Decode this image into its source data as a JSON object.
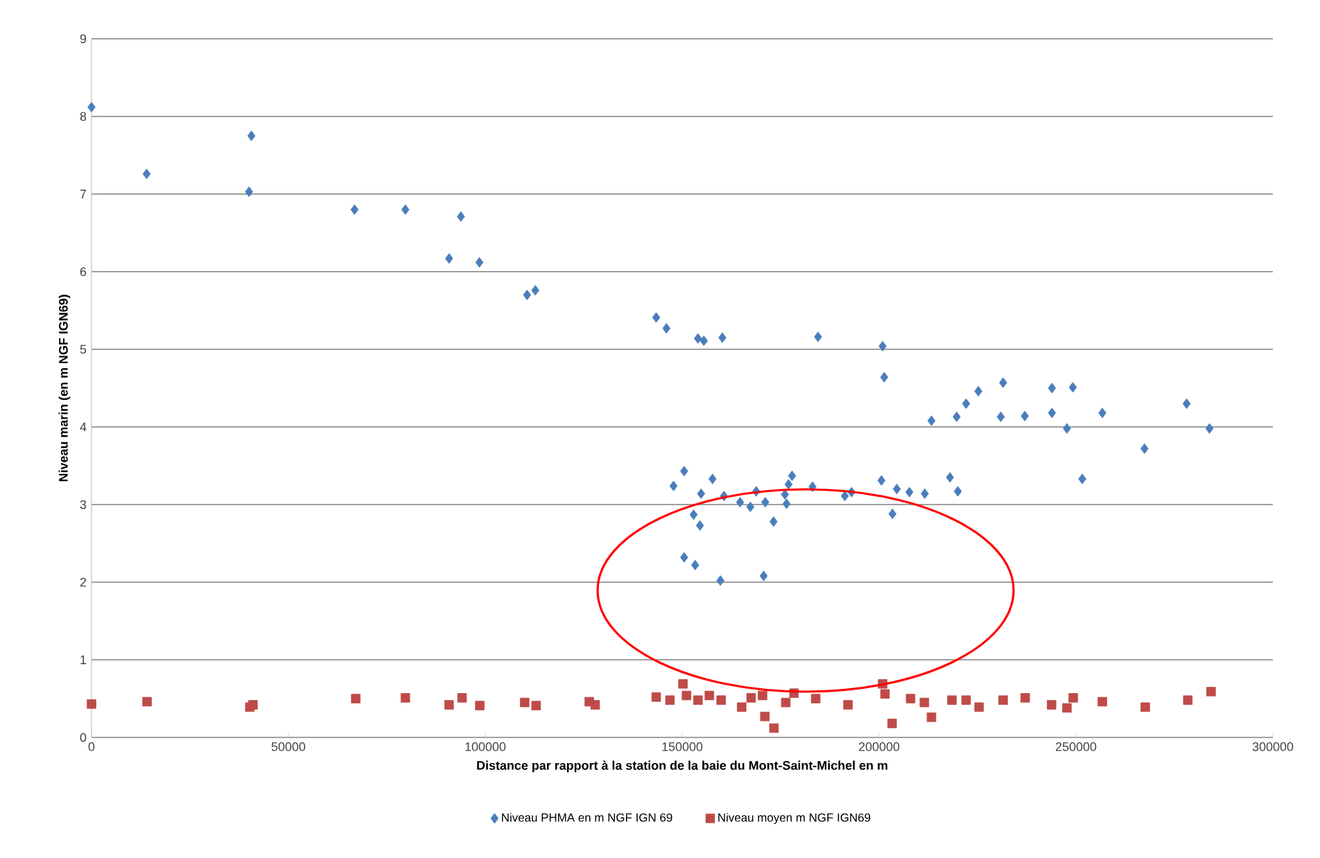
{
  "chart_data": {
    "type": "scatter",
    "xlabel": "Distance par rapport à la station de la baie du Mont-Saint-Michel en m",
    "ylabel": "Niveau marin (en m NGF IGN69)",
    "xlim": [
      0,
      300000
    ],
    "xticks": [
      0,
      50000,
      100000,
      150000,
      200000,
      250000,
      300000
    ],
    "ylim": [
      0,
      9
    ],
    "yticks": [
      0,
      1,
      2,
      3,
      4,
      5,
      6,
      7,
      8,
      9
    ],
    "grid": "y",
    "legend": "bottom",
    "series": [
      {
        "name": "Niveau PHMA en m NGF IGN 69",
        "color": "#4a7ebb",
        "marker": "diamond",
        "x": [
          0,
          14000,
          40600,
          40000,
          66800,
          79700,
          93800,
          90800,
          98500,
          110600,
          112700,
          143400,
          146000,
          154000,
          155500,
          160200,
          184500,
          200900,
          201300,
          213300,
          150500,
          147800,
          157700,
          154800,
          160600,
          164700,
          167300,
          168800,
          171100,
          177900,
          177000,
          176100,
          176500,
          183100,
          191300,
          193000,
          200600,
          204500,
          207700,
          211600,
          203400,
          152900,
          154500,
          173200,
          150500,
          153300,
          159700,
          170700,
          219700,
          222100,
          225200,
          231500,
          230900,
          237000,
          243900,
          243900,
          249200,
          247700,
          251600,
          256700,
          267400,
          278100,
          283900,
          218000,
          220000
        ],
        "values": [
          8.12,
          7.26,
          7.75,
          7.03,
          6.8,
          6.8,
          6.71,
          6.17,
          6.12,
          5.7,
          5.76,
          5.41,
          5.27,
          5.14,
          5.11,
          5.15,
          5.16,
          5.04,
          4.64,
          4.08,
          3.43,
          3.24,
          3.33,
          3.14,
          3.11,
          3.03,
          2.97,
          3.17,
          3.03,
          3.37,
          3.26,
          3.13,
          3.01,
          3.23,
          3.11,
          3.16,
          3.31,
          3.2,
          3.16,
          3.14,
          2.88,
          2.87,
          2.73,
          2.78,
          2.32,
          2.22,
          2.02,
          2.08,
          4.13,
          4.3,
          4.46,
          4.57,
          4.13,
          4.14,
          4.5,
          4.18,
          4.51,
          3.98,
          3.33,
          4.18,
          3.72,
          4.3,
          3.98,
          3.35,
          3.17
        ]
      },
      {
        "name": "Niveau moyen m NGF IGN69",
        "color": "#be4b48",
        "marker": "square",
        "x": [
          0,
          14100,
          40200,
          41000,
          67100,
          79700,
          90800,
          94100,
          98600,
          110000,
          112900,
          126400,
          127900,
          143400,
          150200,
          146900,
          151100,
          154000,
          156900,
          159900,
          165100,
          167500,
          170400,
          171000,
          173300,
          176300,
          178400,
          183900,
          192100,
          200900,
          201500,
          203300,
          208000,
          213300,
          211500,
          218500,
          222100,
          225400,
          231500,
          237100,
          243800,
          247700,
          249300,
          256700,
          267600,
          278400,
          284300
        ],
        "values": [
          0.43,
          0.46,
          0.39,
          0.42,
          0.5,
          0.51,
          0.42,
          0.51,
          0.41,
          0.45,
          0.41,
          0.46,
          0.42,
          0.52,
          0.69,
          0.48,
          0.54,
          0.48,
          0.54,
          0.48,
          0.39,
          0.51,
          0.54,
          0.27,
          0.12,
          0.45,
          0.57,
          0.5,
          0.42,
          0.69,
          0.56,
          0.18,
          0.5,
          0.26,
          0.45,
          0.48,
          0.48,
          0.39,
          0.48,
          0.51,
          0.42,
          0.38,
          0.51,
          0.46,
          0.39,
          0.48,
          0.59
        ]
      }
    ]
  }
}
